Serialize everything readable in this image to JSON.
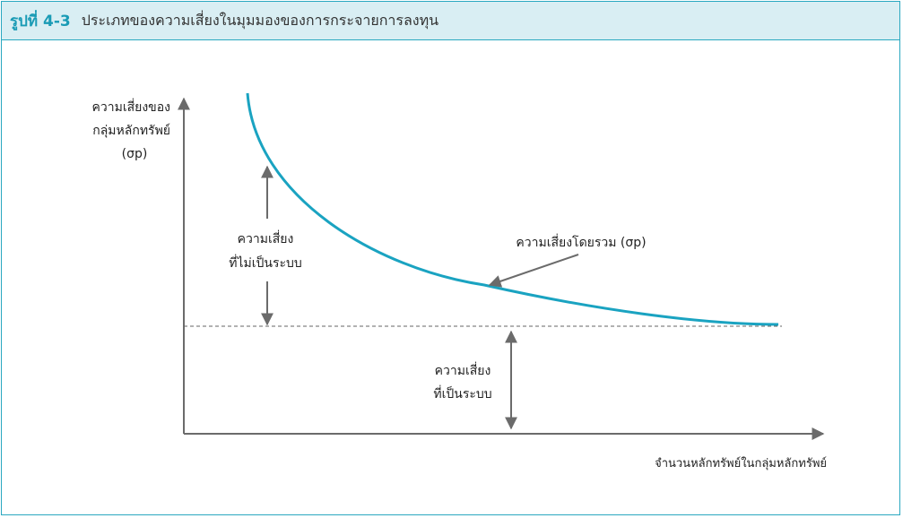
{
  "header": {
    "figure_label": "รูปที่ 4-3",
    "title": "ประเภทของความเสี่ยงในมุมมองของการกระจายการลงทุน"
  },
  "diagram": {
    "y_axis_label_line1": "ความเสี่ยงของ",
    "y_axis_label_line2": "กลุ่มหลักทรัพย์",
    "y_axis_label_line3": "(σp)",
    "x_axis_label": "จำนวนหลักทรัพย์ในกลุ่มหลักทรัพย์",
    "total_risk_label": "ความเสี่ยงโดยรวม (σp)",
    "unsystematic_line1": "ความเสี่ยง",
    "unsystematic_line2": "ที่ไม่เป็นระบบ",
    "systematic_line1": "ความเสี่ยง",
    "systematic_line2": "ที่เป็นระบบ"
  },
  "colors": {
    "accent": "#1a9bb5",
    "curve": "#1aa3c1",
    "header_bg": "#d9eef3",
    "arrow": "#6b6b6b"
  }
}
